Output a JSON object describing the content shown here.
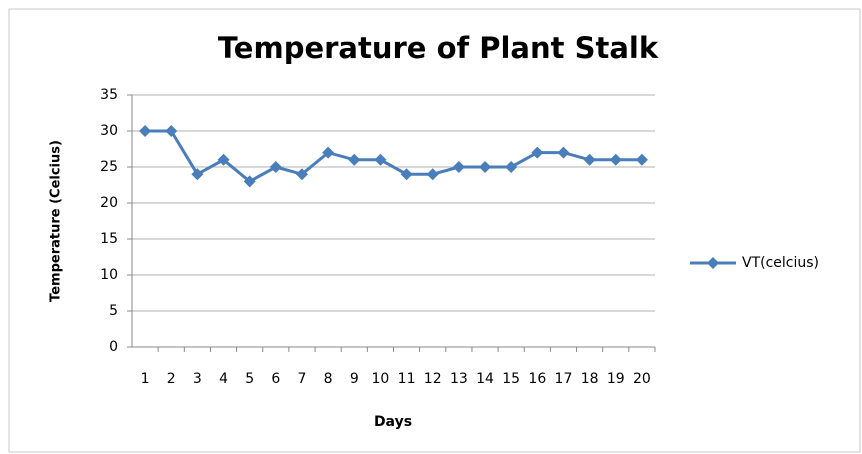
{
  "chart_data": {
    "type": "line",
    "title": "Temperature of Plant Stalk",
    "x_label": "Days",
    "y_label": "Temperature (Celcius)",
    "categories": [
      "1",
      "2",
      "3",
      "4",
      "5",
      "6",
      "7",
      "8",
      "9",
      "10",
      "11",
      "12",
      "13",
      "14",
      "15",
      "16",
      "17",
      "18",
      "19",
      "20"
    ],
    "series": [
      {
        "name": "VT(celcius)",
        "color": "#4a7ebb",
        "values": [
          30,
          30,
          24,
          26,
          23,
          25,
          24,
          27,
          26,
          26,
          24,
          24,
          25,
          25,
          25,
          27,
          27,
          26,
          26,
          26
        ]
      }
    ],
    "ylim": [
      0,
      35
    ],
    "yticks": [
      0,
      5,
      10,
      15,
      20,
      25,
      30,
      35
    ],
    "grid": true,
    "legend": "right"
  }
}
